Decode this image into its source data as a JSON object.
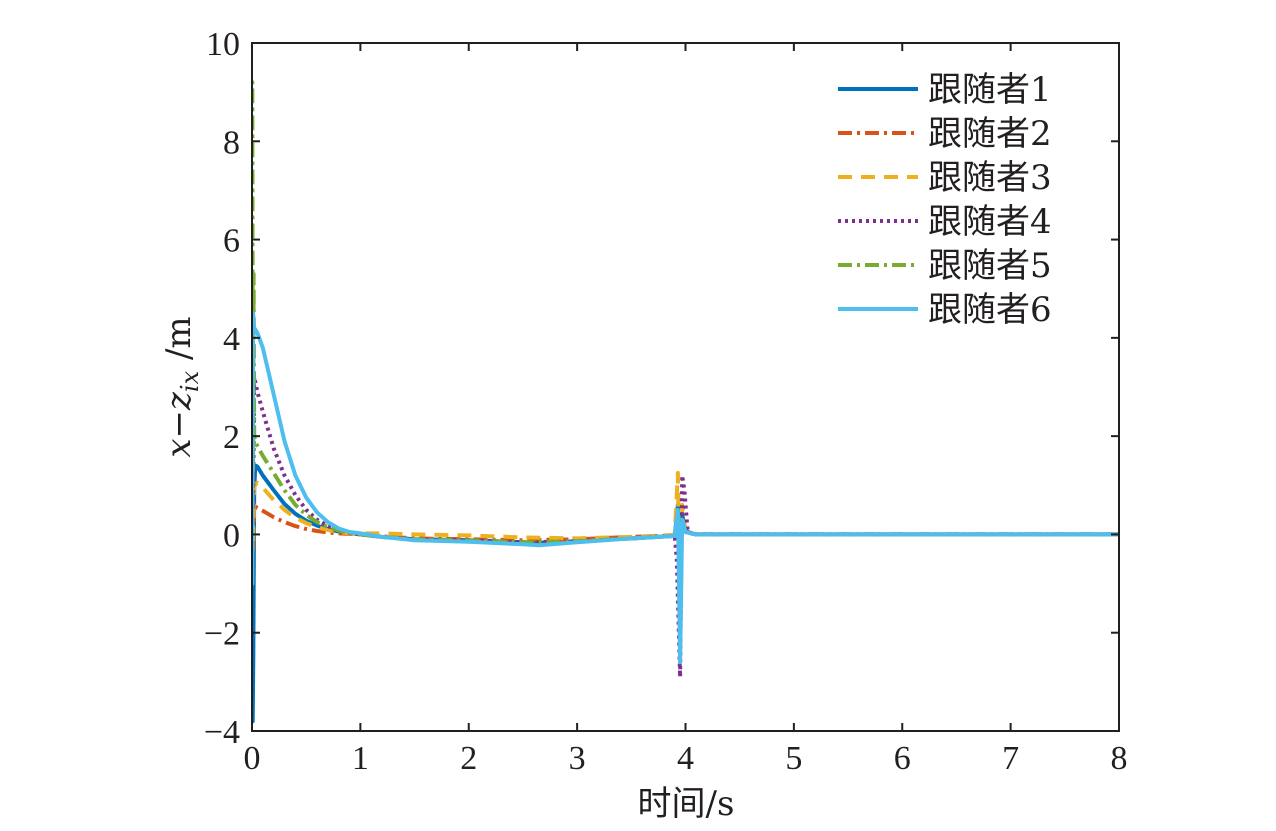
{
  "chart_data": {
    "type": "line",
    "xlabel": "时间/s",
    "ylabel": "x−z",
    "ylabel_subscript": "ix",
    "ylabel_unit": " /m",
    "xlim": [
      0,
      8
    ],
    "ylim": [
      -4,
      10
    ],
    "x_ticks": [
      0,
      1,
      2,
      3,
      4,
      5,
      6,
      7,
      8
    ],
    "y_ticks": [
      -4,
      -2,
      0,
      2,
      4,
      6,
      8,
      10
    ],
    "y_tick_labels": [
      "−4",
      "−2",
      "0",
      "2",
      "4",
      "6",
      "8",
      "10"
    ],
    "grid": false,
    "legend_position": "top-right",
    "series": [
      {
        "name": "跟随者1",
        "color": "#0072bd",
        "dash": "solid",
        "x": [
          0,
          0.003,
          0.006,
          0.012,
          0.02,
          0.03,
          0.05,
          0.1,
          0.2,
          0.3,
          0.4,
          0.5,
          0.6,
          0.7,
          0.8,
          0.9,
          1.0,
          1.2,
          1.5,
          2.0,
          2.5,
          2.65,
          3.0,
          3.5,
          3.9,
          3.93,
          3.95,
          3.97,
          4.0,
          4.05,
          4.1,
          5,
          6,
          7,
          8
        ],
        "y": [
          0,
          -1.0,
          -3.8,
          -2.5,
          0.9,
          1.4,
          1.38,
          1.2,
          0.9,
          0.62,
          0.42,
          0.28,
          0.18,
          0.11,
          0.06,
          0.03,
          0.0,
          -0.05,
          -0.1,
          -0.12,
          -0.16,
          -0.17,
          -0.14,
          -0.08,
          -0.03,
          0.6,
          -0.9,
          0.4,
          0.08,
          0.02,
          0.0,
          0,
          0,
          0,
          0
        ]
      },
      {
        "name": "跟随者2",
        "color": "#d95319",
        "dash": "dashdot",
        "x": [
          0,
          0.005,
          0.01,
          0.02,
          0.04,
          0.1,
          0.2,
          0.3,
          0.4,
          0.5,
          0.6,
          0.7,
          0.8,
          0.9,
          1.0,
          1.2,
          1.5,
          2.0,
          2.5,
          3.0,
          3.5,
          3.9,
          3.93,
          3.95,
          3.97,
          4.0,
          4.1,
          5,
          6,
          7,
          8
        ],
        "y": [
          0,
          0.4,
          -0.3,
          0.6,
          0.55,
          0.48,
          0.35,
          0.25,
          0.17,
          0.11,
          0.07,
          0.04,
          0.02,
          0.01,
          0.0,
          -0.04,
          -0.08,
          -0.1,
          -0.12,
          -0.1,
          -0.05,
          -0.02,
          0.3,
          -0.3,
          0.2,
          0.05,
          0.0,
          0,
          0,
          0,
          0
        ]
      },
      {
        "name": "跟随者3",
        "color": "#edb120",
        "dash": "dashed",
        "x": [
          0,
          0.005,
          0.01,
          0.02,
          0.05,
          0.1,
          0.2,
          0.3,
          0.4,
          0.5,
          0.6,
          0.7,
          0.8,
          0.9,
          1.0,
          1.2,
          1.5,
          2.0,
          2.5,
          3.0,
          3.5,
          3.9,
          3.93,
          3.95,
          3.97,
          4.0,
          4.1,
          5,
          6,
          7,
          8
        ],
        "y": [
          0,
          0.8,
          -0.2,
          1.0,
          1.05,
          0.95,
          0.7,
          0.5,
          0.34,
          0.23,
          0.15,
          0.09,
          0.05,
          0.02,
          0.02,
          0.02,
          0.0,
          -0.02,
          -0.06,
          -0.08,
          -0.05,
          -0.01,
          1.25,
          -2.4,
          0.6,
          0.05,
          0.0,
          0,
          0,
          0,
          0
        ]
      },
      {
        "name": "跟随者4",
        "color": "#7e2f8e",
        "dash": "dotted",
        "x": [
          0,
          0.005,
          0.01,
          0.02,
          0.05,
          0.1,
          0.2,
          0.3,
          0.4,
          0.5,
          0.6,
          0.7,
          0.8,
          0.9,
          1.0,
          1.2,
          1.5,
          2.0,
          2.5,
          3.0,
          3.5,
          3.9,
          3.92,
          3.95,
          3.97,
          3.99,
          4.02,
          4.1,
          5,
          6,
          7,
          8
        ],
        "y": [
          0,
          2.5,
          0.5,
          3.2,
          2.9,
          2.5,
          1.75,
          1.2,
          0.8,
          0.5,
          0.3,
          0.17,
          0.09,
          0.04,
          0.0,
          -0.05,
          -0.1,
          -0.12,
          -0.16,
          -0.14,
          -0.08,
          -0.03,
          -0.5,
          -2.9,
          1.2,
          0.9,
          0.05,
          0.0,
          0,
          0,
          0,
          0
        ]
      },
      {
        "name": "跟随者5",
        "color": "#77ac30",
        "dash": "dashdot",
        "x": [
          0,
          0.003,
          0.006,
          0.01,
          0.015,
          0.02,
          0.03,
          0.05,
          0.1,
          0.2,
          0.3,
          0.4,
          0.5,
          0.6,
          0.7,
          0.8,
          0.9,
          1.0,
          1.2,
          1.5,
          2.0,
          2.5,
          3.0,
          3.5,
          3.9,
          3.93,
          3.95,
          3.97,
          4.0,
          4.1,
          5,
          6,
          7,
          8
        ],
        "y": [
          0,
          9.2,
          4.0,
          1.3,
          5.3,
          2.0,
          1.9,
          1.8,
          1.6,
          1.25,
          0.9,
          0.6,
          0.4,
          0.25,
          0.15,
          0.08,
          0.03,
          0.0,
          -0.05,
          -0.1,
          -0.12,
          -0.16,
          -0.14,
          -0.08,
          -0.03,
          0.4,
          -0.6,
          0.3,
          0.05,
          0.0,
          0,
          0,
          0,
          0
        ]
      },
      {
        "name": "跟随者6",
        "color": "#4dbeee",
        "dash": "solid",
        "x": [
          0,
          0.003,
          0.006,
          0.01,
          0.02,
          0.05,
          0.1,
          0.2,
          0.3,
          0.4,
          0.5,
          0.6,
          0.7,
          0.8,
          0.9,
          1.0,
          1.2,
          1.5,
          2.0,
          2.5,
          2.65,
          3.0,
          3.5,
          3.9,
          3.93,
          3.95,
          3.97,
          4.0,
          4.1,
          5,
          6,
          7,
          8
        ],
        "y": [
          0,
          -1.0,
          2.0,
          4.5,
          4.2,
          4.1,
          3.8,
          2.85,
          1.9,
          1.2,
          0.75,
          0.45,
          0.25,
          0.12,
          0.05,
          0.02,
          -0.05,
          -0.12,
          -0.15,
          -0.2,
          -0.22,
          -0.16,
          -0.08,
          -0.03,
          0.5,
          -2.6,
          0.3,
          0.05,
          0.0,
          0,
          0,
          0,
          0
        ]
      }
    ]
  }
}
